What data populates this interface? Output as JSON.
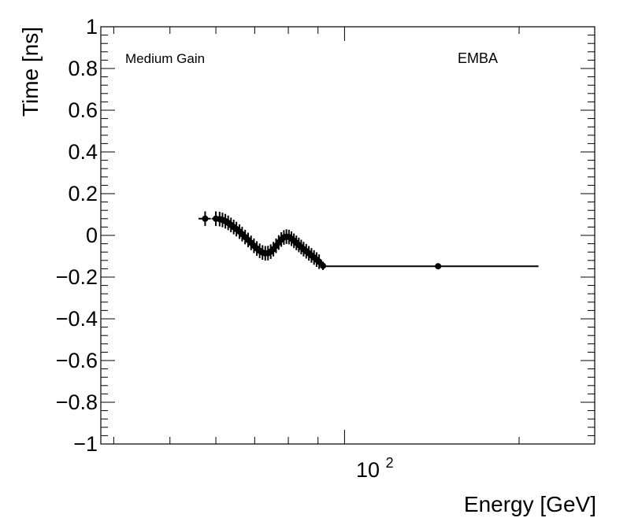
{
  "chart_data": {
    "type": "scatter",
    "title": "",
    "xlabel": "Energy [GeV]",
    "ylabel": "Time [ns]",
    "x_scale": "log",
    "xlim": [
      38,
      270
    ],
    "ylim": [
      -1,
      1
    ],
    "x_major_tick": 100,
    "x_major_label_base": "10",
    "x_major_label_exp": "2",
    "y_ticks": [
      {
        "value": -1.0,
        "label": "−1"
      },
      {
        "value": -0.8,
        "label": "−0.8"
      },
      {
        "value": -0.6,
        "label": "−0.6"
      },
      {
        "value": -0.4,
        "label": "−0.4"
      },
      {
        "value": -0.2,
        "label": "−0.2"
      },
      {
        "value": 0.0,
        "label": "0"
      },
      {
        "value": 0.2,
        "label": "0.2"
      },
      {
        "value": 0.4,
        "label": "0.4"
      },
      {
        "value": 0.6,
        "label": "0.6"
      },
      {
        "value": 0.8,
        "label": "0.8"
      },
      {
        "value": 1.0,
        "label": "1"
      }
    ],
    "annotations": {
      "left": "Medium Gain",
      "right": "EMBA"
    },
    "grid": false,
    "legend": "none",
    "marker_color": "#000000",
    "series": [
      {
        "name": "Medium Gain EMBA",
        "points": [
          {
            "x": 57.5,
            "y": 0.08,
            "yerr": 0.035,
            "xlo": 56.0,
            "xhi": 58.8
          },
          {
            "x": 60.0,
            "y": 0.08,
            "yerr": 0.035,
            "xlo": 59.0,
            "xhi": 60.5
          },
          {
            "x": 60.9,
            "y": 0.078,
            "yerr": 0.035
          },
          {
            "x": 61.6,
            "y": 0.074,
            "yerr": 0.035
          },
          {
            "x": 62.3,
            "y": 0.068,
            "yerr": 0.035
          },
          {
            "x": 63.0,
            "y": 0.06,
            "yerr": 0.035
          },
          {
            "x": 63.7,
            "y": 0.05,
            "yerr": 0.035
          },
          {
            "x": 64.4,
            "y": 0.04,
            "yerr": 0.035
          },
          {
            "x": 65.1,
            "y": 0.03,
            "yerr": 0.035
          },
          {
            "x": 65.9,
            "y": 0.018,
            "yerr": 0.035
          },
          {
            "x": 66.6,
            "y": 0.006,
            "yerr": 0.035
          },
          {
            "x": 67.4,
            "y": -0.008,
            "yerr": 0.035
          },
          {
            "x": 68.2,
            "y": -0.022,
            "yerr": 0.035
          },
          {
            "x": 69.0,
            "y": -0.036,
            "yerr": 0.035
          },
          {
            "x": 69.8,
            "y": -0.05,
            "yerr": 0.035
          },
          {
            "x": 70.6,
            "y": -0.063,
            "yerr": 0.035
          },
          {
            "x": 71.4,
            "y": -0.074,
            "yerr": 0.035
          },
          {
            "x": 72.2,
            "y": -0.082,
            "yerr": 0.035
          },
          {
            "x": 73.0,
            "y": -0.086,
            "yerr": 0.035
          },
          {
            "x": 73.8,
            "y": -0.085,
            "yerr": 0.035
          },
          {
            "x": 74.6,
            "y": -0.078,
            "yerr": 0.035
          },
          {
            "x": 75.4,
            "y": -0.066,
            "yerr": 0.035
          },
          {
            "x": 76.2,
            "y": -0.05,
            "yerr": 0.035
          },
          {
            "x": 77.0,
            "y": -0.034,
            "yerr": 0.035
          },
          {
            "x": 77.8,
            "y": -0.02,
            "yerr": 0.035
          },
          {
            "x": 78.6,
            "y": -0.01,
            "yerr": 0.035
          },
          {
            "x": 79.4,
            "y": -0.006,
            "yerr": 0.035
          },
          {
            "x": 80.2,
            "y": -0.008,
            "yerr": 0.035
          },
          {
            "x": 81.0,
            "y": -0.016,
            "yerr": 0.035
          },
          {
            "x": 81.8,
            "y": -0.026,
            "yerr": 0.035
          },
          {
            "x": 82.6,
            "y": -0.036,
            "yerr": 0.035
          },
          {
            "x": 83.4,
            "y": -0.046,
            "yerr": 0.035
          },
          {
            "x": 84.2,
            "y": -0.056,
            "yerr": 0.035
          },
          {
            "x": 85.0,
            "y": -0.066,
            "yerr": 0.035
          },
          {
            "x": 85.9,
            "y": -0.076,
            "yerr": 0.035
          },
          {
            "x": 86.8,
            "y": -0.086,
            "yerr": 0.035
          },
          {
            "x": 87.7,
            "y": -0.096,
            "yerr": 0.035
          },
          {
            "x": 88.6,
            "y": -0.106,
            "yerr": 0.035
          },
          {
            "x": 89.5,
            "y": -0.116,
            "yerr": 0.035
          },
          {
            "x": 90.4,
            "y": -0.126,
            "yerr": 0.035
          },
          {
            "x": 91.8,
            "y": -0.146,
            "yerr": 0.02
          },
          {
            "x": 145.0,
            "y": -0.148,
            "yerr": 0.0,
            "xlo": 92.5,
            "xhi": 216.0
          }
        ]
      }
    ]
  }
}
